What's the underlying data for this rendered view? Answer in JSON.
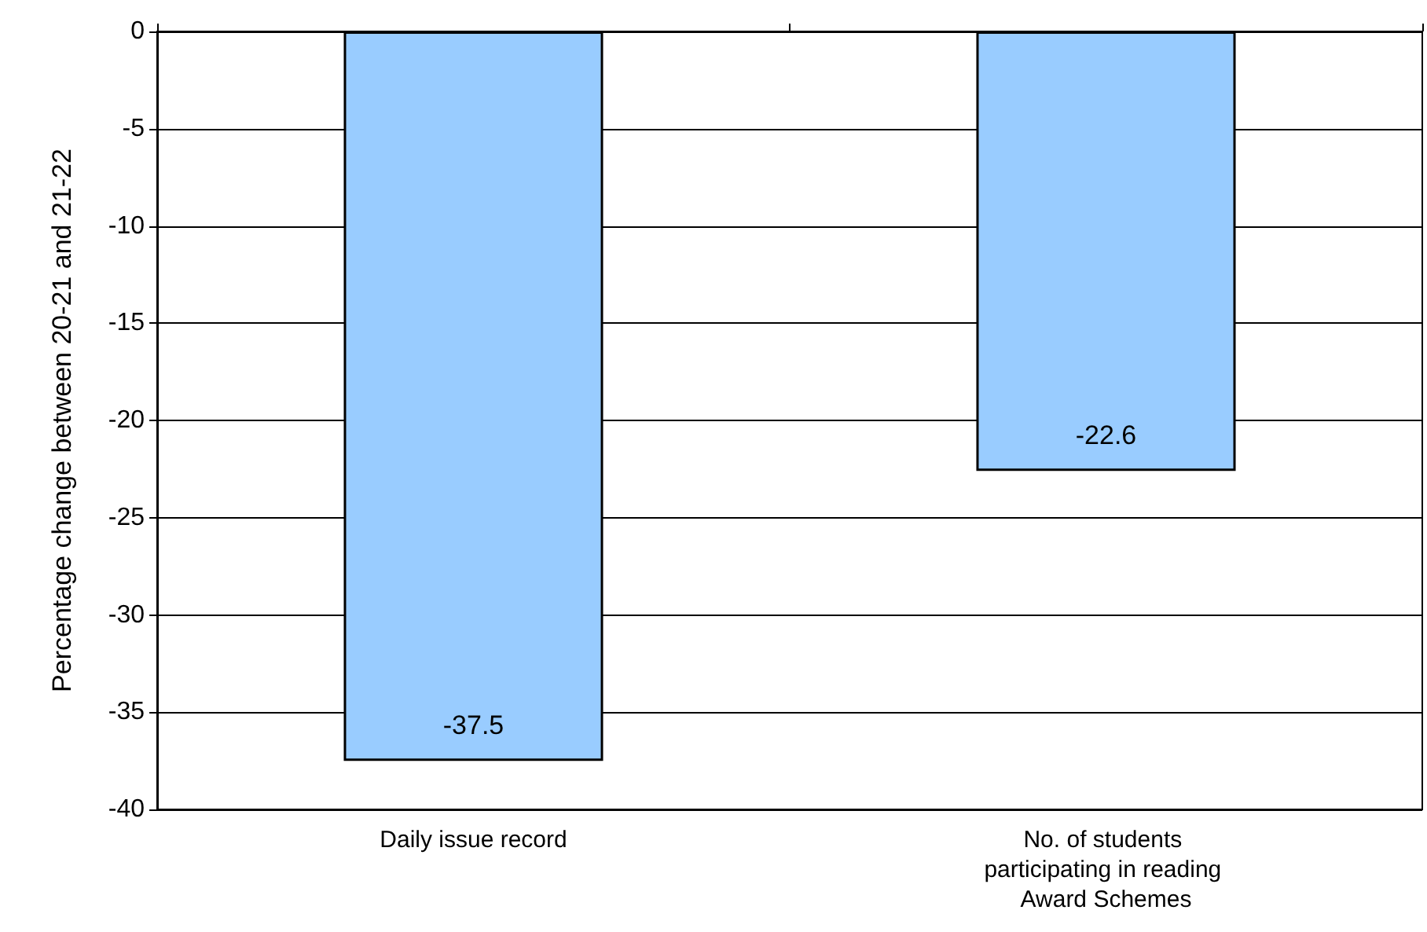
{
  "chart_data": {
    "type": "bar",
    "categories": [
      "Daily issue record",
      "No. of students participating in reading Award Schemes"
    ],
    "values": [
      -37.5,
      -22.6
    ],
    "color": "#99ccff",
    "ylabel": "Percentage change between 20-21 and 21-22",
    "ylim": [
      -40,
      0
    ],
    "yticks": [
      -40,
      -35,
      -30,
      -25,
      -20,
      -15,
      -10,
      -5,
      0
    ],
    "grid": "y",
    "data_labels": true
  }
}
